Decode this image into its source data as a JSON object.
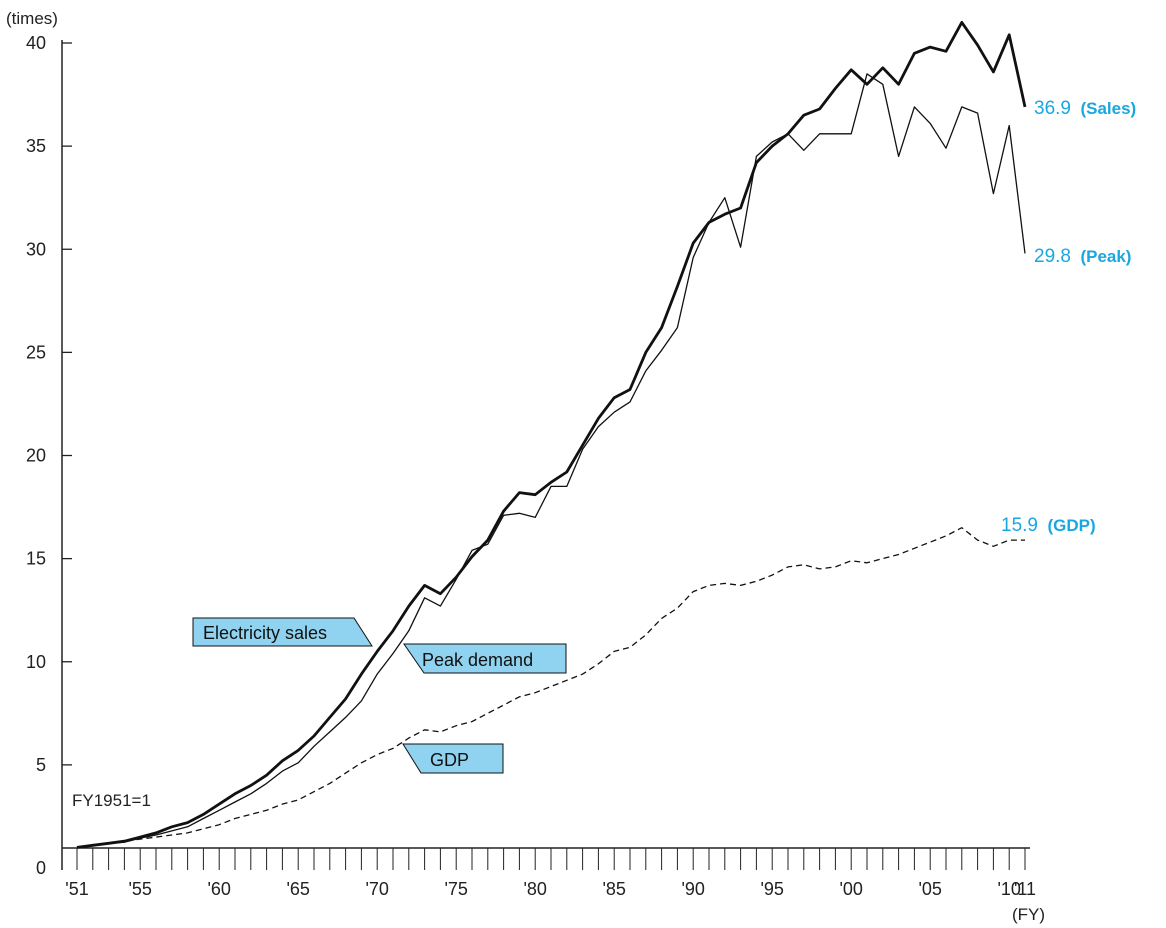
{
  "chart_data": {
    "type": "line",
    "ylabel": "(times)",
    "xlabel": "(FY)",
    "note": "FY1951=1",
    "ylim": [
      0,
      40
    ],
    "yticks": [
      "0",
      "5",
      "10",
      "15",
      "20",
      "25",
      "30",
      "35",
      "40"
    ],
    "xrange": [
      1951,
      2011
    ],
    "xticks": [
      {
        "year": 1951,
        "label": "'51"
      },
      {
        "year": 1955,
        "label": "'55"
      },
      {
        "year": 1960,
        "label": "'60"
      },
      {
        "year": 1965,
        "label": "'65"
      },
      {
        "year": 1970,
        "label": "'70"
      },
      {
        "year": 1975,
        "label": "'75"
      },
      {
        "year": 1980,
        "label": "'80"
      },
      {
        "year": 1985,
        "label": "'85"
      },
      {
        "year": 1990,
        "label": "'90"
      },
      {
        "year": 1995,
        "label": "'95"
      },
      {
        "year": 2000,
        "label": "'00"
      },
      {
        "year": 2005,
        "label": "'05"
      },
      {
        "year": 2010,
        "label": "'10"
      },
      {
        "year": 2011,
        "label": "'11"
      }
    ],
    "accent_color": "#1aa7e0",
    "legend_fill": "#8fd3f0",
    "series": [
      {
        "key": "sales",
        "name": "Electricity sales",
        "end_value": "36.9",
        "end_name": "(Sales)",
        "values": [
          1.0,
          1.1,
          1.2,
          1.3,
          1.5,
          1.7,
          2.0,
          2.2,
          2.6,
          3.1,
          3.6,
          4.0,
          4.5,
          5.2,
          5.7,
          6.4,
          7.3,
          8.2,
          9.4,
          10.5,
          11.5,
          12.7,
          13.7,
          13.3,
          14.1,
          15.1,
          15.9,
          17.3,
          18.2,
          18.1,
          18.7,
          19.2,
          20.5,
          21.8,
          22.8,
          23.2,
          25.0,
          26.2,
          28.2,
          30.3,
          31.3,
          31.7,
          32.0,
          34.2,
          35.0,
          35.6,
          36.5,
          36.8,
          37.8,
          38.7,
          38.0,
          38.8,
          38.0,
          39.5,
          39.8,
          39.6,
          41.0,
          39.9,
          38.6,
          40.4,
          36.9
        ]
      },
      {
        "key": "peak",
        "name": "Peak demand",
        "end_value": "29.8",
        "end_name": "(Peak)",
        "values": [
          1.0,
          1.1,
          1.2,
          1.25,
          1.45,
          1.6,
          1.8,
          2.0,
          2.4,
          2.8,
          3.2,
          3.6,
          4.1,
          4.7,
          5.1,
          5.9,
          6.6,
          7.3,
          8.1,
          9.4,
          10.4,
          11.5,
          13.1,
          12.7,
          14.0,
          15.4,
          15.7,
          17.1,
          17.2,
          17.0,
          18.5,
          18.5,
          20.3,
          21.4,
          22.1,
          22.6,
          24.1,
          25.1,
          26.2,
          29.6,
          31.3,
          32.5,
          30.1,
          34.5,
          35.2,
          35.6,
          34.8,
          35.6,
          35.6,
          35.6,
          38.5,
          38.0,
          34.5,
          36.9,
          36.1,
          34.9,
          36.9,
          36.6,
          32.7,
          36.0,
          29.8
        ]
      },
      {
        "key": "gdp",
        "name": "GDP",
        "end_value": "15.9",
        "end_name": "(GDP)",
        "values": [
          1.0,
          1.1,
          1.2,
          1.3,
          1.4,
          1.5,
          1.6,
          1.7,
          1.9,
          2.1,
          2.4,
          2.6,
          2.8,
          3.1,
          3.3,
          3.7,
          4.1,
          4.6,
          5.1,
          5.5,
          5.8,
          6.3,
          6.7,
          6.6,
          6.9,
          7.1,
          7.5,
          7.9,
          8.3,
          8.5,
          8.8,
          9.1,
          9.4,
          9.9,
          10.5,
          10.7,
          11.3,
          12.1,
          12.6,
          13.4,
          13.7,
          13.8,
          13.7,
          13.9,
          14.2,
          14.6,
          14.7,
          14.5,
          14.6,
          14.9,
          14.8,
          15.0,
          15.2,
          15.5,
          15.8,
          16.1,
          16.5,
          15.9,
          15.6,
          15.9,
          15.9
        ]
      }
    ]
  }
}
